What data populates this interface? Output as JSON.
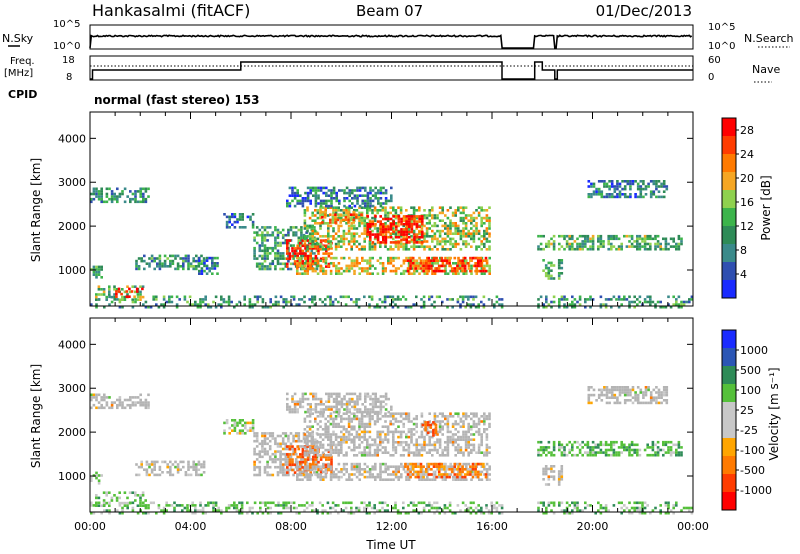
{
  "header": {
    "station": "Hankasalmi (fitACF)",
    "beam": "Beam 07",
    "date": "01/Dec/2013"
  },
  "status_panels": {
    "nsky_label": "N.Sky",
    "nsearch_label": "N.Search",
    "noise_ticks": [
      "10^5",
      "10^0"
    ],
    "freq_label": "Freq.",
    "freq_unit": "[MHz]",
    "freq_ticks": [
      "18",
      "8"
    ],
    "nave_ticks": [
      "60",
      "0"
    ],
    "nave_label": "Nave",
    "cpid_label": "CPID",
    "cpid_text": "normal (fast stereo) 153"
  },
  "colors": {
    "power_scale": [
      "#1a2bff",
      "#2f4fb0",
      "#3a8a8a",
      "#2e8b57",
      "#3cb44b",
      "#8fd14f",
      "#f5a623",
      "#ff7a00",
      "#ff3c00",
      "#ff0000"
    ],
    "velocity_scale": [
      "#1a2bff",
      "#2b56b5",
      "#2e8b57",
      "#55c03a",
      "#c8c8c8",
      "#c8c8c8",
      "#ffa500",
      "#ff7a00",
      "#ff3c00",
      "#ff0000"
    ],
    "ground_scatter": "#b4b4b4"
  },
  "chart_data": [
    {
      "type": "heatmap",
      "parameter": "Power",
      "ylabel": "Slant Range [km]",
      "ylim": [
        180,
        4600
      ],
      "yticks": [
        "1000",
        "2000",
        "3000",
        "4000"
      ],
      "xlim": [
        "00:00",
        "24:00"
      ],
      "colorbar_label": "Power [dB]",
      "colorbar_ticks": [
        "4",
        "8",
        "12",
        "16",
        "20",
        "24",
        "28"
      ],
      "colorbar_range": [
        0,
        30
      ],
      "data_gaps_ut": [
        [
          16.4,
          17.7
        ],
        [
          18.5,
          18.6
        ]
      ],
      "echo_regions": [
        {
          "t": [
            0.0,
            2.3
          ],
          "range_km": [
            2550,
            2880
          ],
          "power_db": 9
        },
        {
          "t": [
            0.0,
            0.5
          ],
          "range_km": [
            850,
            1100
          ],
          "power_db": 12
        },
        {
          "t": [
            0.2,
            2.2
          ],
          "range_km": [
            350,
            650
          ],
          "power_db": 14
        },
        {
          "t": [
            1.0,
            2.1
          ],
          "range_km": [
            420,
            600
          ],
          "power_db": 26
        },
        {
          "t": [
            1.8,
            4.5
          ],
          "range_km": [
            1050,
            1350
          ],
          "power_db": 10
        },
        {
          "t": [
            4.3,
            5.1
          ],
          "range_km": [
            900,
            1300
          ],
          "power_db": 8
        },
        {
          "t": [
            5.3,
            6.5
          ],
          "range_km": [
            1950,
            2300
          ],
          "power_db": 7
        },
        {
          "t": [
            6.5,
            9.0
          ],
          "range_km": [
            1050,
            2000
          ],
          "power_db": 11
        },
        {
          "t": [
            7.8,
            9.6
          ],
          "range_km": [
            1100,
            1700
          ],
          "power_db": 27
        },
        {
          "t": [
            8.2,
            15.9
          ],
          "range_km": [
            900,
            1300
          ],
          "power_db": 18
        },
        {
          "t": [
            8.5,
            15.9
          ],
          "range_km": [
            1500,
            2450
          ],
          "power_db": 16
        },
        {
          "t": [
            9.2,
            10.8
          ],
          "range_km": [
            2100,
            2350
          ],
          "power_db": 22
        },
        {
          "t": [
            11.0,
            13.2
          ],
          "range_km": [
            1650,
            2250
          ],
          "power_db": 28
        },
        {
          "t": [
            12.5,
            15.8
          ],
          "range_km": [
            1000,
            1300
          ],
          "power_db": 26
        },
        {
          "t": [
            7.8,
            12.0
          ],
          "range_km": [
            2450,
            2900
          ],
          "power_db": 8
        },
        {
          "t": [
            17.8,
            23.5
          ],
          "range_km": [
            1500,
            1800
          ],
          "power_db": 13
        },
        {
          "t": [
            18.0,
            18.8
          ],
          "range_km": [
            800,
            1250
          ],
          "power_db": 12
        },
        {
          "t": [
            19.8,
            23.0
          ],
          "range_km": [
            2650,
            3050
          ],
          "power_db": 8
        },
        {
          "t": [
            0.0,
            24.0
          ],
          "range_km": [
            180,
            420
          ],
          "power_db": 10
        }
      ]
    },
    {
      "type": "heatmap",
      "parameter": "Velocity",
      "ylabel": "Slant Range [km]",
      "ylim": [
        180,
        4600
      ],
      "yticks": [
        "1000",
        "2000",
        "3000",
        "4000"
      ],
      "xlim": [
        "00:00",
        "24:00"
      ],
      "xticks": [
        "00:00",
        "04:00",
        "08:00",
        "12:00",
        "16:00",
        "20:00",
        "00:00"
      ],
      "xlabel": "Time UT",
      "colorbar_label": "Velocity [m s⁻¹]",
      "colorbar_ticks": [
        "1000",
        "500",
        "100",
        "25",
        "-25",
        "-100",
        "-500",
        "-1000"
      ],
      "data_gaps_ut": [
        [
          16.4,
          17.7
        ],
        [
          18.5,
          18.6
        ]
      ],
      "echo_regions": [
        {
          "t": [
            0.0,
            2.3
          ],
          "range_km": [
            2550,
            2880
          ],
          "velocity": 0,
          "ground_scatter": true
        },
        {
          "t": [
            0.0,
            0.5
          ],
          "range_km": [
            850,
            1100
          ],
          "velocity": 120
        },
        {
          "t": [
            0.2,
            2.2
          ],
          "range_km": [
            350,
            650
          ],
          "velocity": 150
        },
        {
          "t": [
            1.8,
            4.5
          ],
          "range_km": [
            1050,
            1350
          ],
          "velocity": 0,
          "ground_scatter": true
        },
        {
          "t": [
            5.3,
            6.5
          ],
          "range_km": [
            1950,
            2300
          ],
          "velocity": 100
        },
        {
          "t": [
            6.5,
            9.0
          ],
          "range_km": [
            1050,
            2000
          ],
          "velocity": 0,
          "ground_scatter": true
        },
        {
          "t": [
            7.8,
            9.6
          ],
          "range_km": [
            1100,
            1700
          ],
          "velocity": -250
        },
        {
          "t": [
            8.2,
            15.9
          ],
          "range_km": [
            900,
            1300
          ],
          "velocity": 0,
          "ground_scatter": true
        },
        {
          "t": [
            8.5,
            15.9
          ],
          "range_km": [
            1500,
            2450
          ],
          "velocity": 0,
          "ground_scatter": true
        },
        {
          "t": [
            13.2,
            13.8
          ],
          "range_km": [
            1950,
            2250
          ],
          "velocity": -300
        },
        {
          "t": [
            12.5,
            15.8
          ],
          "range_km": [
            1000,
            1300
          ],
          "velocity": -150
        },
        {
          "t": [
            7.8,
            12.0
          ],
          "range_km": [
            2450,
            2900
          ],
          "velocity": 0,
          "ground_scatter": true
        },
        {
          "t": [
            17.8,
            23.5
          ],
          "range_km": [
            1500,
            1800
          ],
          "velocity": 200
        },
        {
          "t": [
            18.0,
            18.8
          ],
          "range_km": [
            800,
            1250
          ],
          "velocity": 0,
          "ground_scatter": true
        },
        {
          "t": [
            19.8,
            23.0
          ],
          "range_km": [
            2650,
            3050
          ],
          "velocity": 0,
          "ground_scatter": true
        },
        {
          "t": [
            0.0,
            24.0
          ],
          "range_km": [
            180,
            420
          ],
          "velocity": 150
        }
      ]
    }
  ]
}
